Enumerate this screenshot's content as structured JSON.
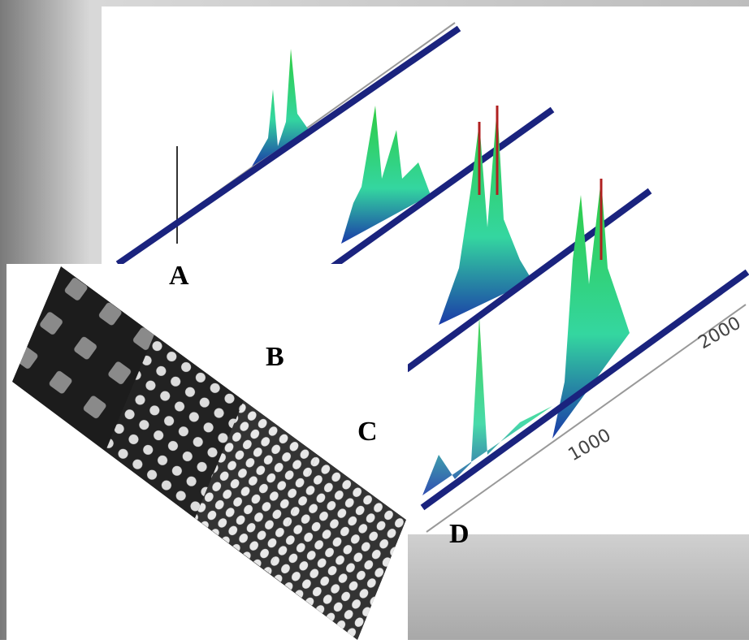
{
  "panel_labels": [
    "A",
    "B",
    "C",
    "D"
  ],
  "axis_labels": [
    "1000",
    "2000"
  ]
}
